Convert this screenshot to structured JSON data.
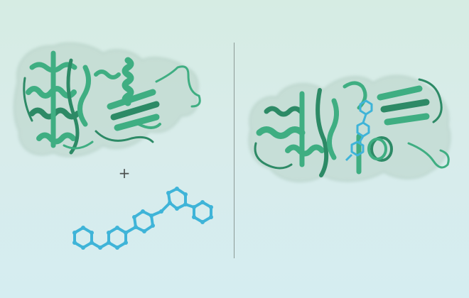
{
  "figure": {
    "operator_symbol": "+",
    "colors": {
      "background_top": "#d6ece3",
      "background_bottom": "#d5edf1",
      "protein_ribbon": "#3fae82",
      "protein_ribbon_dark": "#2d8a66",
      "protein_surface": "#b9d3c8",
      "ligand": "#3fb4d8",
      "divider": "#8c9a96"
    },
    "left_panel": {
      "items": [
        {
          "name": "protein-structure",
          "style": "cartoon-with-transparent-surface"
        },
        {
          "name": "ligand-molecule",
          "style": "ball-and-stick"
        }
      ]
    },
    "right_panel": {
      "items": [
        {
          "name": "protein-ligand-complex",
          "style": "cartoon-with-transparent-surface",
          "ligand_bound": true
        }
      ]
    }
  }
}
